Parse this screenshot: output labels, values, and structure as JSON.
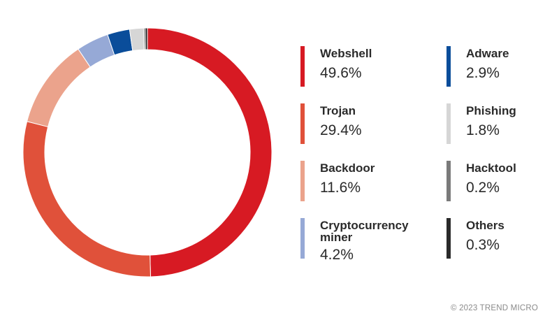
{
  "chart_data": {
    "type": "pie",
    "donut": true,
    "title": "",
    "categories": [
      "Webshell",
      "Trojan",
      "Backdoor",
      "Cryptocurrency miner",
      "Adware",
      "Phishing",
      "Hacktool",
      "Others"
    ],
    "values": [
      49.6,
      29.4,
      11.6,
      4.2,
      2.9,
      1.8,
      0.2,
      0.3
    ],
    "labels": [
      "49.6%",
      "29.4%",
      "11.6%",
      "4.2%",
      "2.9%",
      "1.8%",
      "0.2%",
      "0.3%"
    ],
    "colors": [
      "#d71a23",
      "#e0513a",
      "#eba38c",
      "#96a9d6",
      "#0a4d9a",
      "#d6d6d6",
      "#7a7a7a",
      "#2a2a2a"
    ],
    "legend_placement": "right"
  },
  "copyright": "© 2023 TREND MICRO"
}
